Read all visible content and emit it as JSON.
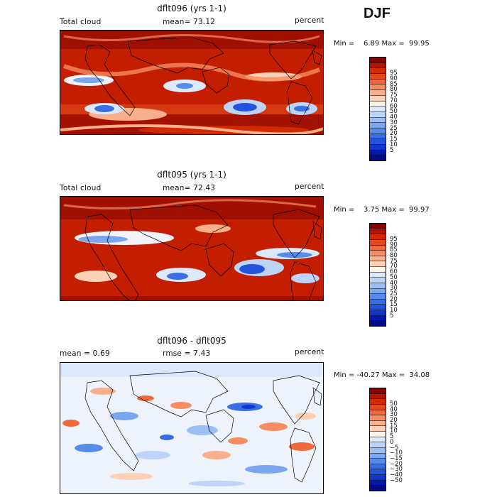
{
  "season": "DJF",
  "panels": [
    {
      "title": "dflt096 (yrs 1-1)",
      "left_label": "Total cloud",
      "mid_label": "mean=  73.12",
      "units": "percent",
      "minmax": "Min =    6.89 Max =  99.95",
      "colorbar_colors": [
        "#8c0000",
        "#b21500",
        "#d22a00",
        "#e24a1a",
        "#ee6a3e",
        "#f58c62",
        "#f9ae8c",
        "#fcd0b6",
        "#fff4ea",
        "#dce8fb",
        "#bdd4f8",
        "#9bbef4",
        "#7aa6ef",
        "#578be9",
        "#3a6fe3",
        "#2353dd",
        "#1236cc",
        "#0018b0",
        "#000c88"
      ],
      "colorbar_labels": [
        "95",
        "90",
        "85",
        "80",
        "75",
        "70",
        "60",
        "50",
        "40",
        "30",
        "25",
        "20",
        "15",
        "10",
        "5"
      ]
    },
    {
      "title": "dflt095 (yrs 1-1)",
      "left_label": "Total cloud",
      "mid_label": "mean=  72.43",
      "units": "percent",
      "minmax": "Min =    3.75 Max =  99.97",
      "colorbar_colors": [
        "#8c0000",
        "#b21500",
        "#d22a00",
        "#e24a1a",
        "#ee6a3e",
        "#f58c62",
        "#f9ae8c",
        "#fcd0b6",
        "#fff4ea",
        "#dce8fb",
        "#bdd4f8",
        "#9bbef4",
        "#7aa6ef",
        "#578be9",
        "#3a6fe3",
        "#2353dd",
        "#1236cc",
        "#0018b0",
        "#000c88"
      ],
      "colorbar_labels": [
        "95",
        "90",
        "85",
        "80",
        "75",
        "70",
        "60",
        "50",
        "40",
        "30",
        "25",
        "20",
        "15",
        "10",
        "5"
      ]
    },
    {
      "title": "dflt096 - dflt095",
      "left_label": "mean =    0.69",
      "mid_label": "rmse =    7.43",
      "units": "percent",
      "minmax": "Min = -40.27 Max =  34.08",
      "colorbar_colors": [
        "#8c0000",
        "#b21500",
        "#d22a00",
        "#e24a1a",
        "#ee6a3e",
        "#f58c62",
        "#f9ae8c",
        "#fcd0b6",
        "#fff4ea",
        "#dce8fb",
        "#bdd4f8",
        "#9bbef4",
        "#7aa6ef",
        "#578be9",
        "#3a6fe3",
        "#2353dd",
        "#1236cc",
        "#0018b0",
        "#000c88"
      ],
      "colorbar_labels": [
        "50",
        "40",
        "30",
        "20",
        "15",
        "10",
        "5",
        "0",
        "−5",
        "−10",
        "−15",
        "−20",
        "−30",
        "−40",
        "−50"
      ]
    }
  ]
}
